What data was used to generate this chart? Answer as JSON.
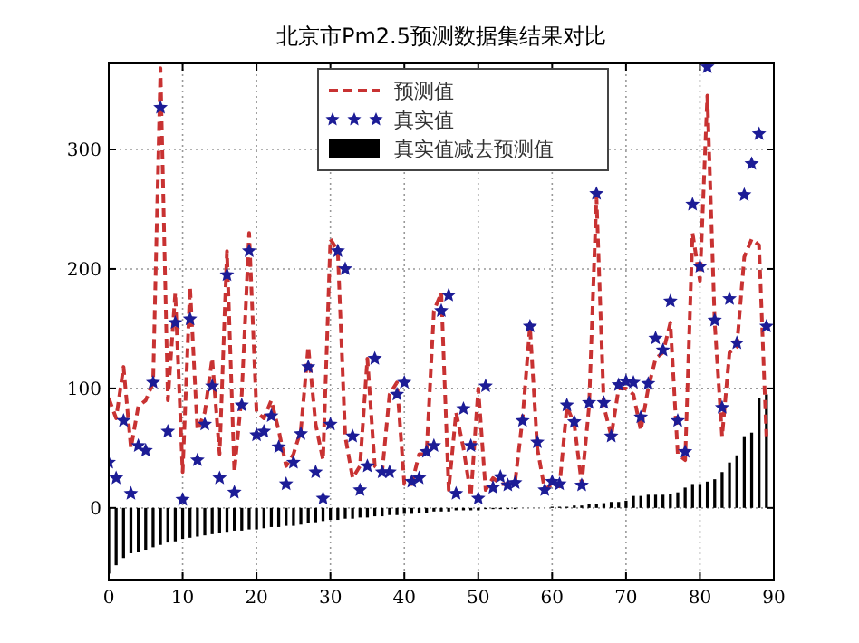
{
  "chart_data": {
    "type": "line",
    "title": "北京市Pm2.5预测数据集结果对比",
    "x": [
      0,
      1,
      2,
      3,
      4,
      5,
      6,
      7,
      8,
      9,
      10,
      11,
      12,
      13,
      14,
      15,
      16,
      17,
      18,
      19,
      20,
      21,
      22,
      23,
      24,
      25,
      26,
      27,
      28,
      29,
      30,
      31,
      32,
      33,
      34,
      35,
      36,
      37,
      38,
      39,
      40,
      41,
      42,
      43,
      44,
      45,
      46,
      47,
      48,
      49,
      50,
      51,
      52,
      53,
      54,
      55,
      56,
      57,
      58,
      59,
      60,
      61,
      62,
      63,
      64,
      65,
      66,
      67,
      68,
      69,
      70,
      71,
      72,
      73,
      74,
      75,
      76,
      77,
      78,
      79,
      80,
      81,
      82,
      83,
      84,
      85,
      86,
      87,
      88,
      89
    ],
    "xlim": [
      0,
      90
    ],
    "xticks": [
      0,
      10,
      20,
      30,
      40,
      50,
      60,
      70,
      80,
      90
    ],
    "ylim": [
      -60,
      372
    ],
    "yticks": [
      0,
      100,
      200,
      300
    ],
    "grid": true,
    "legend": "top",
    "series": [
      {
        "name": "预测值",
        "line_style": "dashed",
        "marker": "none",
        "color": "#c83232",
        "values": [
          92,
          75,
          118,
          50,
          85,
          90,
          105,
          368,
          90,
          180,
          30,
          185,
          65,
          80,
          125,
          45,
          215,
          30,
          95,
          230,
          80,
          75,
          90,
          65,
          35,
          45,
          65,
          135,
          70,
          40,
          225,
          215,
          60,
          25,
          35,
          125,
          35,
          30,
          95,
          105,
          20,
          20,
          45,
          45,
          165,
          180,
          15,
          80,
          50,
          10,
          100,
          15,
          25,
          20,
          20,
          22,
          75,
          152,
          50,
          15,
          20,
          18,
          85,
          70,
          20,
          85,
          260,
          85,
          60,
          100,
          100,
          95,
          65,
          100,
          125,
          130,
          155,
          45,
          40,
          230,
          190,
          345,
          155,
          60,
          130,
          135,
          210,
          225,
          220,
          60
        ]
      },
      {
        "name": "真实值",
        "type": "scatter",
        "marker": "star",
        "color": "#1c1c96",
        "values": [
          38,
          25,
          73,
          12,
          52,
          48,
          105,
          335,
          64,
          155,
          7,
          158,
          40,
          70,
          102,
          25,
          195,
          13,
          86,
          215,
          61,
          64,
          77,
          51,
          20,
          38,
          62,
          118,
          30,
          8,
          70,
          215,
          200,
          60,
          15,
          35,
          125,
          30,
          30,
          95,
          105,
          22,
          25,
          47,
          52,
          165,
          178,
          12,
          83,
          52,
          8,
          102,
          17,
          26,
          19,
          21,
          73,
          152,
          55,
          15,
          22,
          20,
          86,
          72,
          19,
          88,
          263,
          88,
          60,
          103,
          106,
          105,
          76,
          104,
          142,
          132,
          173,
          73,
          47,
          254,
          202,
          369,
          157,
          84,
          175,
          138,
          262,
          288,
          313,
          152
        ]
      },
      {
        "name": "真实值减去预测值",
        "type": "bar",
        "color": "#000000",
        "values": [
          -55,
          -48,
          -42,
          -38,
          -37,
          -35,
          -33,
          -31,
          -29,
          -28,
          -26,
          -25,
          -24,
          -23,
          -22,
          -21,
          -20,
          -19,
          -19,
          -18,
          -18,
          -17,
          -16,
          -16,
          -15,
          -15,
          -14,
          -13,
          -12,
          -11,
          -10,
          -10,
          -9,
          -9,
          -8,
          -8,
          -7,
          -7,
          -6,
          -6,
          -5,
          -5,
          -4,
          -4,
          -3,
          -3,
          -3,
          -2,
          -2,
          -2,
          -2,
          -1,
          -1,
          -1,
          -1,
          -1,
          0,
          0,
          0,
          0,
          1,
          1,
          1,
          2,
          2,
          3,
          3,
          4,
          5,
          5,
          6,
          10,
          10,
          11,
          11,
          11,
          12,
          13,
          17,
          20,
          20,
          22,
          24,
          30,
          38,
          44,
          60,
          63,
          92,
          95
        ]
      }
    ]
  }
}
